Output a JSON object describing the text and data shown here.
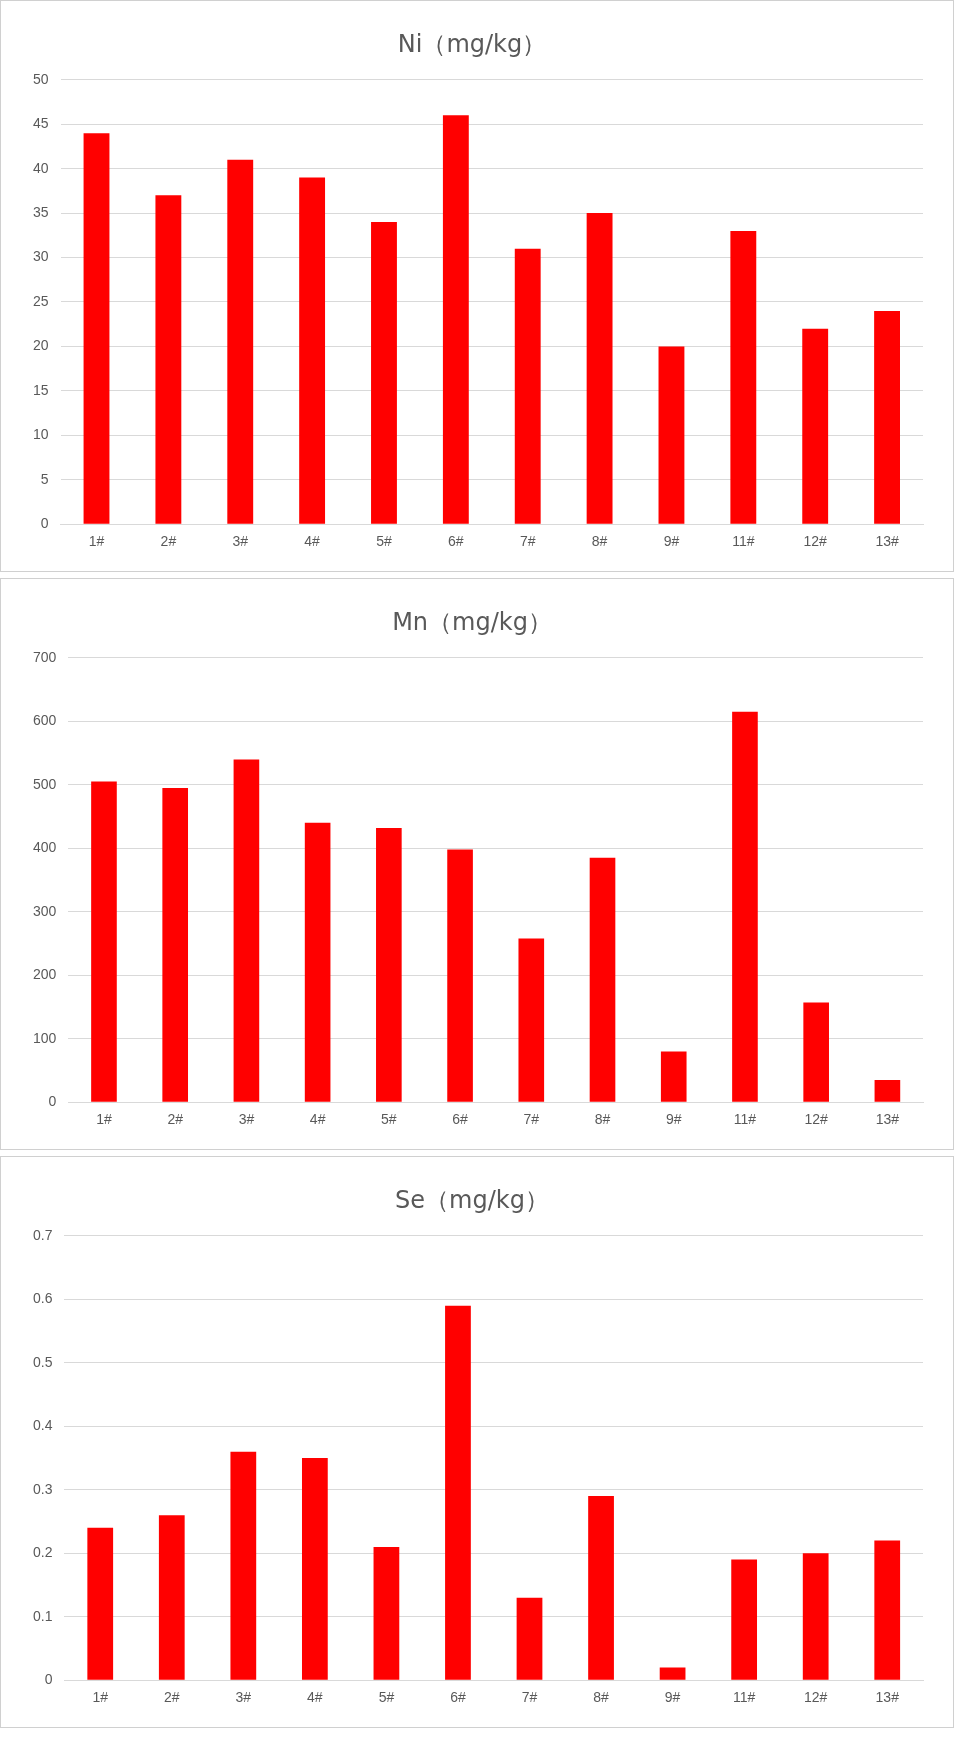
{
  "chart_data": [
    {
      "type": "bar",
      "title": "Ni（mg/kg）",
      "categories": [
        "1#",
        "2#",
        "3#",
        "4#",
        "5#",
        "6#",
        "7#",
        "8#",
        "9#",
        "11#",
        "12#",
        "13#"
      ],
      "values": [
        44,
        37,
        41,
        39,
        34,
        46,
        31,
        35,
        20,
        33,
        22,
        24
      ],
      "color": "#ff0000",
      "ylim": [
        0,
        50
      ],
      "yticks": [
        0,
        5,
        10,
        15,
        20,
        25,
        30,
        35,
        40,
        45,
        50
      ],
      "grid": "y",
      "legend": false
    },
    {
      "type": "bar",
      "title": "Mn（mg/kg）",
      "categories": [
        "1#",
        "2#",
        "3#",
        "4#",
        "5#",
        "6#",
        "7#",
        "8#",
        "9#",
        "11#",
        "12#",
        "13#"
      ],
      "values": [
        505,
        495,
        540,
        440,
        432,
        398,
        258,
        385,
        80,
        615,
        157,
        35
      ],
      "color": "#ff0000",
      "ylim": [
        0,
        700
      ],
      "yticks": [
        0,
        100,
        200,
        300,
        400,
        500,
        600,
        700
      ],
      "grid": "y",
      "legend": false
    },
    {
      "type": "bar",
      "title": "Se（mg/kg）",
      "categories": [
        "1#",
        "2#",
        "3#",
        "4#",
        "5#",
        "6#",
        "7#",
        "8#",
        "9#",
        "11#",
        "12#",
        "13#"
      ],
      "values": [
        0.24,
        0.26,
        0.36,
        0.35,
        0.21,
        0.59,
        0.13,
        0.29,
        0.02,
        0.19,
        0.2,
        0.22
      ],
      "color": "#ff0000",
      "ylim": [
        0,
        0.7
      ],
      "yticks": [
        0,
        0.1,
        0.2,
        0.3,
        0.4,
        0.5,
        0.6,
        0.7
      ],
      "grid": "y",
      "legend": false
    }
  ]
}
